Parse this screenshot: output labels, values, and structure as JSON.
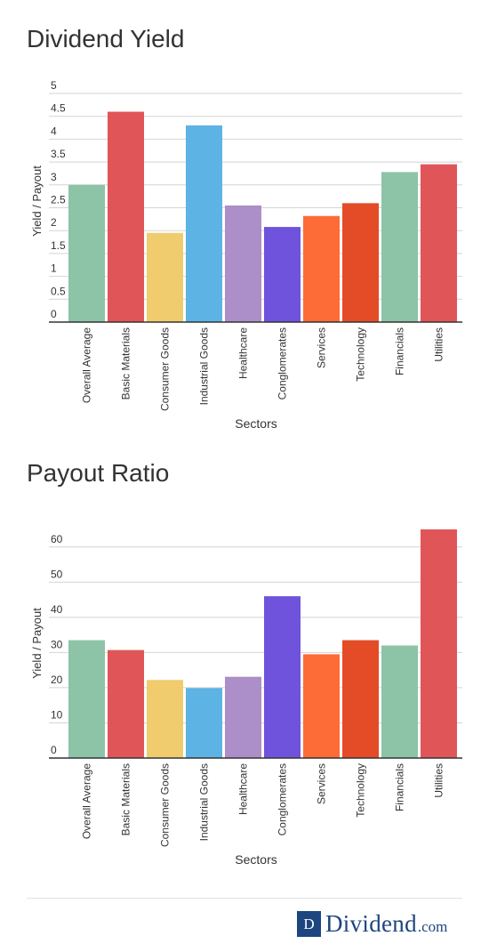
{
  "chart_data": [
    {
      "type": "bar",
      "title": "Dividend Yield",
      "xlabel": "Sectors",
      "ylabel": "Yield / Payout",
      "ylim": [
        0,
        5
      ],
      "yticks": [
        "0",
        "0.5",
        "1",
        "1.5",
        "2",
        "2.5",
        "3",
        "3.5",
        "4",
        "4.5",
        "5"
      ],
      "grid": true,
      "categories": [
        "Overall Average",
        "Basic Materials",
        "Consumer Goods",
        "Industrial Goods",
        "Healthcare",
        "Conglomerates",
        "Services",
        "Technology",
        "Financials",
        "Utilities"
      ],
      "values": [
        3.0,
        4.6,
        1.95,
        4.3,
        2.55,
        2.08,
        2.32,
        2.6,
        3.28,
        3.45
      ],
      "colors": [
        "#8dc3a7",
        "#e05658",
        "#f0cc6e",
        "#5db3e4",
        "#ac8ec8",
        "#7053dc",
        "#fd6b37",
        "#e34c26",
        "#8dc3a7",
        "#e05658"
      ]
    },
    {
      "type": "bar",
      "title": "Payout Ratio",
      "xlabel": "Sectors",
      "ylabel": "Yield / Payout",
      "ylim": [
        0,
        65
      ],
      "yticks": [
        "0",
        "10",
        "20",
        "30",
        "40",
        "50",
        "60"
      ],
      "grid": true,
      "categories": [
        "Overall Average",
        "Basic Materials",
        "Consumer Goods",
        "Industrial Goods",
        "Healthcare",
        "Conglomerates",
        "Services",
        "Technology",
        "Financials",
        "Utilities"
      ],
      "values": [
        33.5,
        30.7,
        22.2,
        19.9,
        23.1,
        46.0,
        29.5,
        33.5,
        32.0,
        65.0
      ],
      "colors": [
        "#8dc3a7",
        "#e05658",
        "#f0cc6e",
        "#5db3e4",
        "#ac8ec8",
        "#7053dc",
        "#fd6b37",
        "#e34c26",
        "#8dc3a7",
        "#e05658"
      ]
    }
  ],
  "footer": {
    "logo_letter": "D",
    "brand_name": "Dividend",
    "brand_tld": ".com",
    "brand_color": "#1d4580"
  }
}
